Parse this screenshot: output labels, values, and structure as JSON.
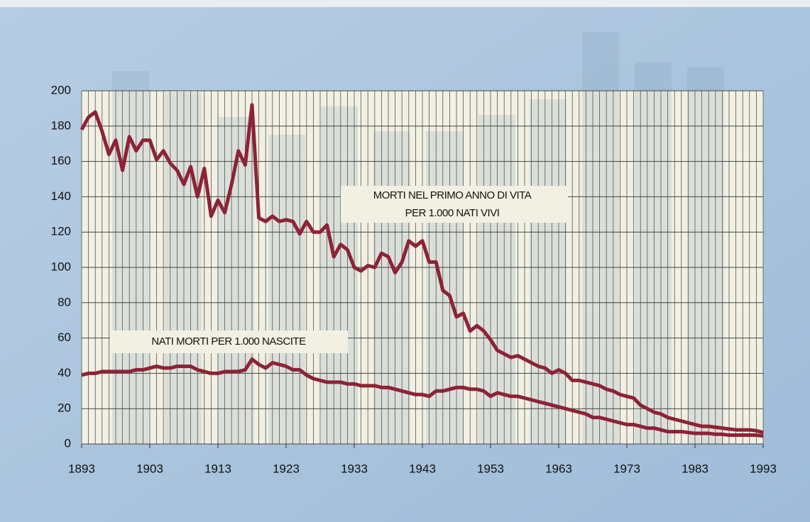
{
  "chart_data": {
    "type": "line",
    "x": [
      1893,
      1894,
      1895,
      1896,
      1897,
      1898,
      1899,
      1900,
      1901,
      1902,
      1903,
      1904,
      1905,
      1906,
      1907,
      1908,
      1909,
      1910,
      1911,
      1912,
      1913,
      1914,
      1915,
      1916,
      1917,
      1918,
      1919,
      1920,
      1921,
      1922,
      1923,
      1924,
      1925,
      1926,
      1927,
      1928,
      1929,
      1930,
      1931,
      1932,
      1933,
      1934,
      1935,
      1936,
      1937,
      1938,
      1939,
      1940,
      1941,
      1942,
      1943,
      1944,
      1945,
      1946,
      1947,
      1948,
      1949,
      1950,
      1951,
      1952,
      1953,
      1954,
      1955,
      1956,
      1957,
      1958,
      1959,
      1960,
      1961,
      1962,
      1963,
      1964,
      1965,
      1966,
      1967,
      1968,
      1969,
      1970,
      1971,
      1972,
      1973,
      1974,
      1975,
      1976,
      1977,
      1978,
      1979,
      1980,
      1981,
      1982,
      1983,
      1984,
      1985,
      1986,
      1987,
      1988,
      1989,
      1990,
      1991,
      1992,
      1993
    ],
    "series": [
      {
        "name": "MORTI NEL PRIMO ANNO DI VITA PER 1.000 NATI VIVI",
        "color": "#8e2236",
        "values": [
          178,
          185,
          188,
          177,
          164,
          172,
          155,
          174,
          166,
          172,
          172,
          161,
          166,
          159,
          155,
          147,
          157,
          140,
          156,
          129,
          138,
          131,
          147,
          166,
          158,
          192,
          128,
          126,
          129,
          126,
          127,
          126,
          119,
          126,
          120,
          120,
          124,
          106,
          113,
          110,
          100,
          98,
          101,
          100,
          108,
          106,
          97,
          103,
          115,
          112,
          115,
          103,
          103,
          87,
          84,
          72,
          74,
          64,
          67,
          64,
          59,
          53,
          51,
          49,
          50,
          48,
          46,
          44,
          43,
          40,
          42,
          40,
          36,
          36,
          35,
          34,
          33,
          31,
          30,
          28,
          27,
          26,
          22,
          20,
          18,
          17,
          15,
          14,
          13,
          12,
          11,
          10,
          10,
          9.5,
          9,
          8.5,
          8,
          8,
          8,
          7.5,
          6.5
        ]
      },
      {
        "name": "NATI MORTI PER 1.000 NASCITE",
        "color": "#8e2236",
        "values": [
          39,
          40,
          40,
          41,
          41,
          41,
          41,
          41,
          42,
          42,
          43,
          44,
          43,
          43,
          44,
          44,
          44,
          42,
          41,
          40,
          40,
          41,
          41,
          41,
          42,
          48,
          45,
          43,
          46,
          45,
          44,
          42,
          42,
          39,
          37,
          36,
          35,
          35,
          35,
          34,
          34,
          33,
          33,
          33,
          32,
          32,
          31,
          30,
          29,
          28,
          28,
          27,
          30,
          30,
          31,
          32,
          32,
          31,
          31,
          30,
          27,
          29,
          28,
          27,
          27,
          26,
          25,
          24,
          23,
          22,
          21,
          20,
          19,
          18,
          17,
          15,
          15,
          14,
          13,
          12,
          11,
          11,
          10,
          9,
          9,
          8,
          7,
          7,
          7,
          6.5,
          6,
          6,
          6,
          5.5,
          5.5,
          5,
          5,
          5,
          5,
          5,
          4.5
        ]
      }
    ],
    "xlim": [
      1893,
      1993
    ],
    "xticks": [
      1893,
      1903,
      1913,
      1923,
      1933,
      1943,
      1953,
      1963,
      1973,
      1983,
      1993
    ],
    "ylim": [
      0,
      200
    ],
    "yticks": [
      0,
      20,
      40,
      60,
      80,
      100,
      120,
      140,
      160,
      180,
      200
    ],
    "grid": true
  }
}
